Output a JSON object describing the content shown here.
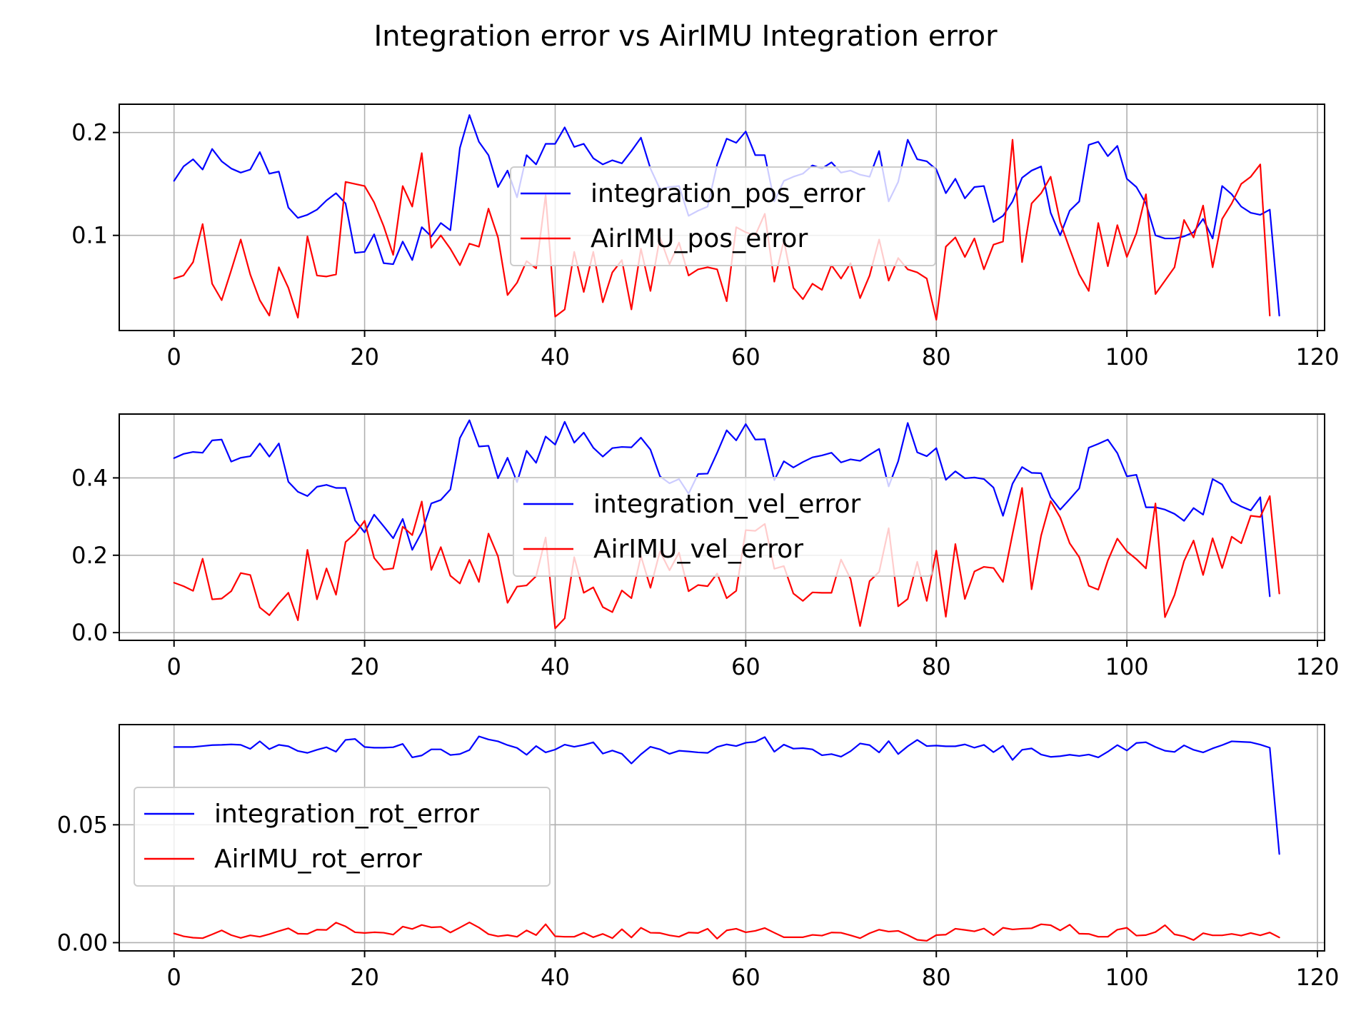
{
  "title": "Integration error vs AirIMU Integration error",
  "colors": {
    "integration": "#0000ff",
    "airimu": "#ff0000"
  },
  "chart_data": [
    {
      "type": "line",
      "title": "",
      "xlabel": "",
      "ylabel": "",
      "xlim": [
        -5.75,
        120.75
      ],
      "ylim": [
        0.0075,
        0.2275
      ],
      "xticks": [
        "0",
        "20",
        "40",
        "60",
        "80",
        "100",
        "120"
      ],
      "yticks": [
        "0.1",
        "0.2"
      ],
      "grid": true,
      "legend_loc": "upper-center",
      "series": [
        {
          "name": "integration_pos_error",
          "color": "#0000ff",
          "values": [
            0.153,
            0.167,
            0.174,
            0.164,
            0.184,
            0.172,
            0.165,
            0.161,
            0.164,
            0.181,
            0.16,
            0.162,
            0.127,
            0.117,
            0.12,
            0.125,
            0.134,
            0.141,
            0.131,
            0.083,
            0.084,
            0.101,
            0.073,
            0.072,
            0.094,
            0.076,
            0.108,
            0.099,
            0.112,
            0.105,
            0.185,
            0.217,
            0.191,
            0.178,
            0.147,
            0.163,
            0.137,
            0.178,
            0.169,
            0.189,
            0.189,
            0.205,
            0.186,
            0.189,
            0.175,
            0.169,
            0.173,
            0.17,
            0.182,
            0.195,
            0.165,
            0.145,
            0.147,
            0.148,
            0.119,
            0.124,
            0.128,
            0.169,
            0.194,
            0.19,
            0.201,
            0.178,
            0.178,
            0.133,
            0.153,
            0.157,
            0.16,
            0.168,
            0.165,
            0.171,
            0.161,
            0.163,
            0.159,
            0.157,
            0.182,
            0.133,
            0.152,
            0.193,
            0.174,
            0.172,
            0.164,
            0.141,
            0.155,
            0.136,
            0.147,
            0.148,
            0.113,
            0.119,
            0.133,
            0.156,
            0.163,
            0.167,
            0.122,
            0.1,
            0.124,
            0.133,
            0.188,
            0.191,
            0.177,
            0.187,
            0.155,
            0.147,
            0.131,
            0.1,
            0.097,
            0.097,
            0.099,
            0.103,
            0.116,
            0.097,
            0.148,
            0.14,
            0.128,
            0.122,
            0.12,
            0.125,
            0.022
          ]
        },
        {
          "name": "AirIMU_pos_error",
          "color": "#ff0000",
          "values": [
            0.058,
            0.061,
            0.074,
            0.111,
            0.053,
            0.037,
            0.066,
            0.096,
            0.062,
            0.037,
            0.022,
            0.069,
            0.049,
            0.02,
            0.099,
            0.061,
            0.06,
            0.062,
            0.152,
            0.15,
            0.148,
            0.132,
            0.109,
            0.081,
            0.148,
            0.128,
            0.18,
            0.088,
            0.1,
            0.087,
            0.071,
            0.092,
            0.089,
            0.126,
            0.098,
            0.042,
            0.054,
            0.075,
            0.068,
            0.139,
            0.021,
            0.028,
            0.084,
            0.045,
            0.084,
            0.035,
            0.064,
            0.076,
            0.028,
            0.087,
            0.046,
            0.098,
            0.072,
            0.093,
            0.061,
            0.067,
            0.069,
            0.067,
            0.036,
            0.108,
            0.103,
            0.1,
            0.121,
            0.055,
            0.095,
            0.049,
            0.038,
            0.053,
            0.047,
            0.071,
            0.058,
            0.073,
            0.039,
            0.061,
            0.096,
            0.056,
            0.078,
            0.067,
            0.064,
            0.058,
            0.018,
            0.089,
            0.098,
            0.079,
            0.097,
            0.067,
            0.091,
            0.094,
            0.193,
            0.074,
            0.131,
            0.141,
            0.157,
            0.113,
            0.087,
            0.062,
            0.046,
            0.112,
            0.07,
            0.11,
            0.079,
            0.102,
            0.14,
            0.043,
            0.056,
            0.069,
            0.115,
            0.098,
            0.129,
            0.069,
            0.116,
            0.131,
            0.15,
            0.157,
            0.169,
            0.022
          ]
        }
      ]
    },
    {
      "type": "line",
      "title": "",
      "xlabel": "",
      "ylabel": "",
      "xlim": [
        -5.75,
        120.75
      ],
      "ylim": [
        -0.02,
        0.565
      ],
      "xticks": [
        "0",
        "20",
        "40",
        "60",
        "80",
        "100",
        "120"
      ],
      "yticks": [
        "0.0",
        "0.2",
        "0.4"
      ],
      "grid": true,
      "legend_loc": "upper-center",
      "series": [
        {
          "name": "integration_vel_error",
          "color": "#0000ff",
          "values": [
            0.451,
            0.462,
            0.467,
            0.465,
            0.497,
            0.499,
            0.442,
            0.452,
            0.456,
            0.489,
            0.455,
            0.489,
            0.39,
            0.364,
            0.353,
            0.377,
            0.382,
            0.374,
            0.374,
            0.29,
            0.259,
            0.305,
            0.275,
            0.244,
            0.294,
            0.214,
            0.26,
            0.334,
            0.343,
            0.37,
            0.503,
            0.549,
            0.481,
            0.483,
            0.399,
            0.452,
            0.389,
            0.47,
            0.439,
            0.507,
            0.486,
            0.545,
            0.491,
            0.517,
            0.478,
            0.455,
            0.477,
            0.48,
            0.479,
            0.504,
            0.473,
            0.404,
            0.386,
            0.397,
            0.359,
            0.41,
            0.411,
            0.465,
            0.523,
            0.497,
            0.539,
            0.499,
            0.5,
            0.394,
            0.443,
            0.427,
            0.441,
            0.453,
            0.458,
            0.465,
            0.44,
            0.448,
            0.444,
            0.46,
            0.475,
            0.378,
            0.443,
            0.542,
            0.466,
            0.456,
            0.477,
            0.395,
            0.417,
            0.399,
            0.401,
            0.397,
            0.375,
            0.302,
            0.385,
            0.428,
            0.413,
            0.412,
            0.35,
            0.318,
            0.345,
            0.373,
            0.478,
            0.488,
            0.499,
            0.464,
            0.404,
            0.408,
            0.324,
            0.324,
            0.318,
            0.307,
            0.289,
            0.322,
            0.305,
            0.397,
            0.383,
            0.339,
            0.326,
            0.316,
            0.35,
            0.094
          ]
        },
        {
          "name": "AirIMU_vel_error",
          "color": "#ff0000",
          "values": [
            0.129,
            0.12,
            0.108,
            0.191,
            0.086,
            0.088,
            0.107,
            0.154,
            0.149,
            0.065,
            0.045,
            0.076,
            0.103,
            0.032,
            0.214,
            0.086,
            0.166,
            0.098,
            0.234,
            0.256,
            0.289,
            0.193,
            0.163,
            0.166,
            0.274,
            0.252,
            0.339,
            0.162,
            0.221,
            0.147,
            0.127,
            0.188,
            0.131,
            0.256,
            0.197,
            0.077,
            0.119,
            0.122,
            0.146,
            0.246,
            0.011,
            0.037,
            0.195,
            0.103,
            0.117,
            0.066,
            0.053,
            0.109,
            0.089,
            0.198,
            0.116,
            0.21,
            0.161,
            0.207,
            0.107,
            0.123,
            0.12,
            0.153,
            0.089,
            0.108,
            0.265,
            0.263,
            0.281,
            0.165,
            0.172,
            0.101,
            0.082,
            0.104,
            0.103,
            0.103,
            0.189,
            0.139,
            0.017,
            0.133,
            0.157,
            0.27,
            0.068,
            0.087,
            0.183,
            0.082,
            0.212,
            0.041,
            0.229,
            0.087,
            0.158,
            0.17,
            0.167,
            0.131,
            0.255,
            0.374,
            0.112,
            0.251,
            0.34,
            0.298,
            0.231,
            0.195,
            0.121,
            0.111,
            0.186,
            0.243,
            0.21,
            0.19,
            0.166,
            0.334,
            0.04,
            0.097,
            0.185,
            0.238,
            0.149,
            0.244,
            0.167,
            0.248,
            0.231,
            0.302,
            0.299,
            0.353,
            0.101
          ]
        }
      ]
    },
    {
      "type": "line",
      "title": "",
      "xlabel": "",
      "ylabel": "",
      "xlim": [
        -5.75,
        120.75
      ],
      "ylim": [
        -0.0035,
        0.0925
      ],
      "xticks": [
        "0",
        "20",
        "40",
        "60",
        "80",
        "100",
        "120"
      ],
      "yticks": [
        "0.00",
        "0.05"
      ],
      "grid": true,
      "legend_loc": "center-left",
      "series": [
        {
          "name": "integration_rot_error",
          "color": "#0000ff",
          "values": [
            0.083,
            0.083,
            0.083,
            0.0834,
            0.0838,
            0.0839,
            0.0841,
            0.0839,
            0.0822,
            0.0854,
            0.0821,
            0.0839,
            0.0833,
            0.0813,
            0.0805,
            0.0818,
            0.0829,
            0.081,
            0.086,
            0.0864,
            0.083,
            0.0827,
            0.0827,
            0.0829,
            0.0843,
            0.0786,
            0.0794,
            0.082,
            0.082,
            0.0796,
            0.08,
            0.0817,
            0.0875,
            0.0862,
            0.0854,
            0.0838,
            0.0826,
            0.0797,
            0.0834,
            0.0807,
            0.0819,
            0.084,
            0.0831,
            0.0839,
            0.085,
            0.0802,
            0.0815,
            0.0801,
            0.076,
            0.0799,
            0.0831,
            0.082,
            0.0801,
            0.0814,
            0.0811,
            0.0807,
            0.0805,
            0.083,
            0.0841,
            0.0834,
            0.0848,
            0.0852,
            0.0872,
            0.081,
            0.084,
            0.0823,
            0.0825,
            0.082,
            0.0795,
            0.08,
            0.0789,
            0.0812,
            0.0845,
            0.0838,
            0.0807,
            0.0855,
            0.08,
            0.0833,
            0.086,
            0.0834,
            0.0836,
            0.0833,
            0.0833,
            0.0841,
            0.0827,
            0.0839,
            0.0808,
            0.0835,
            0.0775,
            0.0818,
            0.0824,
            0.0798,
            0.0788,
            0.0791,
            0.0797,
            0.0792,
            0.0798,
            0.0786,
            0.081,
            0.0838,
            0.0815,
            0.0847,
            0.085,
            0.083,
            0.0814,
            0.0809,
            0.0837,
            0.0818,
            0.0807,
            0.0824,
            0.0838,
            0.0854,
            0.0852,
            0.085,
            0.084,
            0.0827,
            0.0376
          ]
        },
        {
          "name": "AirIMU_rot_error",
          "color": "#ff0000",
          "values": [
            0.0039,
            0.0027,
            0.0021,
            0.0019,
            0.0035,
            0.0052,
            0.0032,
            0.002,
            0.0031,
            0.0025,
            0.0036,
            0.0049,
            0.0061,
            0.0038,
            0.0037,
            0.0055,
            0.0054,
            0.0085,
            0.0069,
            0.0044,
            0.0041,
            0.0044,
            0.0042,
            0.0034,
            0.0068,
            0.0058,
            0.0075,
            0.0065,
            0.0067,
            0.0043,
            0.0064,
            0.0086,
            0.0064,
            0.0036,
            0.0027,
            0.0032,
            0.0025,
            0.0052,
            0.0032,
            0.0078,
            0.0027,
            0.0025,
            0.0025,
            0.0042,
            0.0023,
            0.0037,
            0.0019,
            0.0057,
            0.0022,
            0.0063,
            0.0042,
            0.0041,
            0.0031,
            0.0025,
            0.0043,
            0.0041,
            0.0059,
            0.0017,
            0.0052,
            0.0059,
            0.0044,
            0.005,
            0.0062,
            0.0042,
            0.0023,
            0.0023,
            0.0023,
            0.0033,
            0.003,
            0.0043,
            0.0042,
            0.0031,
            0.0019,
            0.004,
            0.0055,
            0.0047,
            0.005,
            0.0032,
            0.0012,
            0.0008,
            0.0032,
            0.0034,
            0.0059,
            0.0054,
            0.0048,
            0.006,
            0.0032,
            0.0063,
            0.0056,
            0.0059,
            0.0061,
            0.0078,
            0.0074,
            0.0052,
            0.0076,
            0.0038,
            0.0037,
            0.0025,
            0.0025,
            0.0055,
            0.0063,
            0.003,
            0.0032,
            0.0045,
            0.0074,
            0.0035,
            0.0027,
            0.0011,
            0.004,
            0.0031,
            0.0031,
            0.0037,
            0.003,
            0.0041,
            0.0031,
            0.0043,
            0.0022
          ]
        }
      ]
    }
  ]
}
